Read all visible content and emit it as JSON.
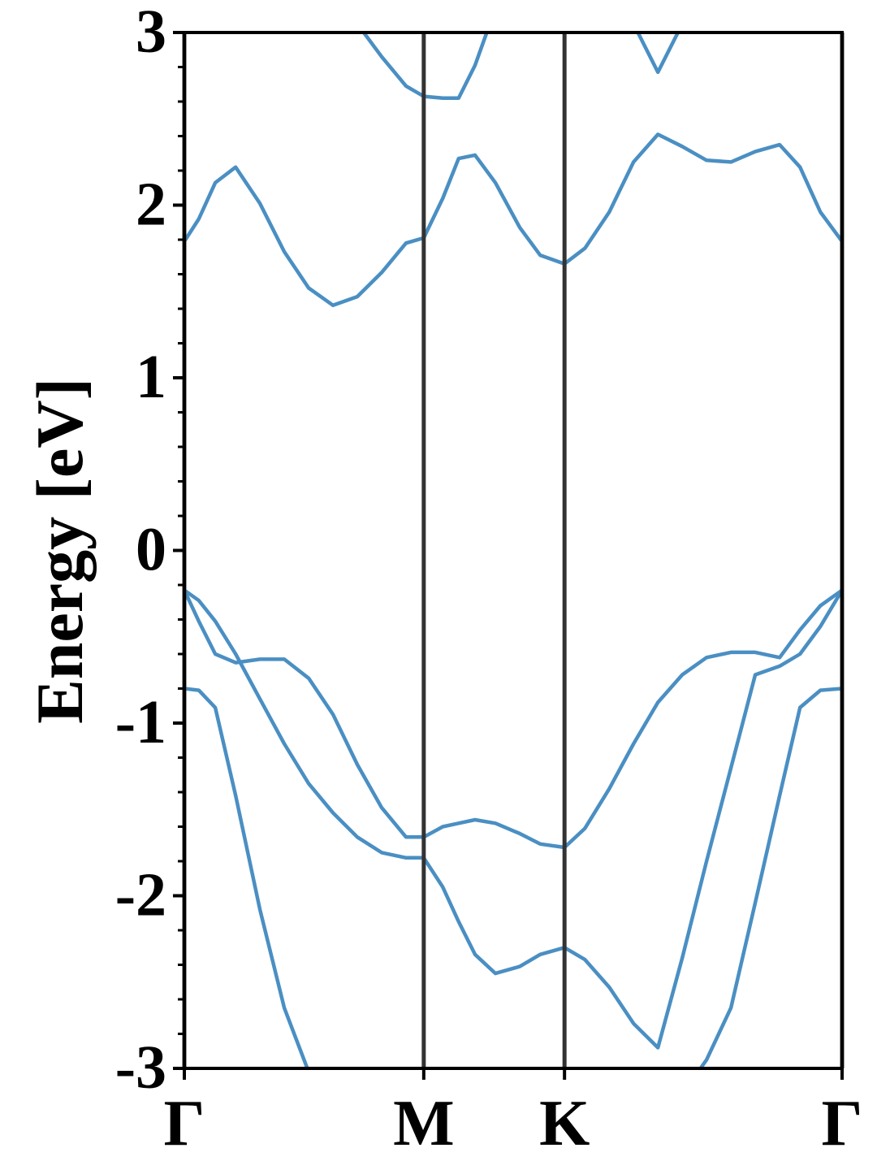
{
  "chart_data": {
    "type": "line",
    "ylabel": "Energy [eV]",
    "xlim": [
      0,
      1
    ],
    "ylim": [
      -3,
      3
    ],
    "xticks": [
      {
        "value": 0,
        "label": "Γ"
      },
      {
        "value": 0.364,
        "label": "M"
      },
      {
        "value": 0.578,
        "label": "K"
      },
      {
        "value": 1,
        "label": "Γ"
      }
    ],
    "yticks": [
      -3,
      -2,
      -1,
      0,
      1,
      2,
      3
    ],
    "yminorticks": [
      -2.8,
      -2.6,
      -2.4,
      -2.2,
      -1.8,
      -1.6,
      -1.4,
      -1.2,
      -0.8,
      -0.6,
      -0.4,
      -0.2,
      0.2,
      0.4,
      0.6,
      0.8,
      1.2,
      1.4,
      1.6,
      1.8,
      2.2,
      2.4,
      2.6,
      2.8
    ],
    "x": [
      0,
      0.022,
      0.047,
      0.078,
      0.115,
      0.152,
      0.189,
      0.226,
      0.263,
      0.3,
      0.337,
      0.364,
      0.393,
      0.417,
      0.442,
      0.473,
      0.51,
      0.541,
      0.578,
      0.609,
      0.646,
      0.683,
      0.72,
      0.757,
      0.794,
      0.831,
      0.868,
      0.905,
      0.936,
      0.967,
      1
    ],
    "series": [
      {
        "color": "#4a8fc3",
        "values": [
          -0.8,
          -0.81,
          -0.91,
          -1.42,
          -2.08,
          -2.65,
          -3.02,
          null,
          null,
          null,
          null,
          null,
          null,
          null,
          null,
          null,
          null,
          null,
          null,
          null,
          null,
          null,
          null,
          -3.15,
          -2.95,
          -2.65,
          -2.04,
          -1.42,
          -0.91,
          -0.81,
          -0.8
        ]
      },
      {
        "color": "#4a8fc3",
        "values": [
          -0.23,
          -0.29,
          -0.41,
          -0.6,
          -0.86,
          -1.12,
          -1.35,
          -1.52,
          -1.66,
          -1.75,
          -1.78,
          -1.78,
          -1.95,
          -2.15,
          -2.34,
          -2.45,
          -2.41,
          -2.34,
          -2.3,
          -2.37,
          -2.53,
          -2.74,
          -2.88,
          -2.36,
          -1.8,
          -1.26,
          -0.72,
          -0.67,
          -0.6,
          -0.44,
          -0.23
        ]
      },
      {
        "color": "#4a8fc3",
        "values": [
          -0.23,
          -0.41,
          -0.6,
          -0.65,
          -0.63,
          -0.63,
          -0.74,
          -0.95,
          -1.24,
          -1.49,
          -1.66,
          -1.66,
          -1.6,
          -1.58,
          -1.56,
          -1.58,
          -1.64,
          -1.7,
          -1.72,
          -1.61,
          -1.38,
          -1.12,
          -0.88,
          -0.72,
          -0.62,
          -0.59,
          -0.59,
          -0.62,
          -0.46,
          -0.32,
          -0.23
        ]
      },
      {
        "color": "#4a8fc3",
        "values": [
          1.79,
          1.92,
          2.13,
          2.22,
          2.01,
          1.73,
          1.52,
          1.42,
          1.47,
          1.61,
          1.78,
          1.81,
          2.04,
          2.27,
          2.29,
          2.13,
          1.87,
          1.71,
          1.66,
          1.75,
          1.96,
          2.25,
          2.41,
          2.34,
          2.26,
          2.25,
          2.31,
          2.35,
          2.22,
          1.96,
          1.79
        ]
      },
      {
        "color": "#4a8fc3",
        "values": [
          null,
          null,
          null,
          null,
          null,
          null,
          null,
          null,
          3.05,
          2.86,
          2.69,
          2.63,
          2.62,
          2.62,
          2.81,
          3.14,
          null,
          null,
          null,
          null,
          null,
          3.05,
          2.77,
          3.05,
          null,
          null,
          null,
          null,
          null,
          null,
          null
        ]
      }
    ]
  }
}
